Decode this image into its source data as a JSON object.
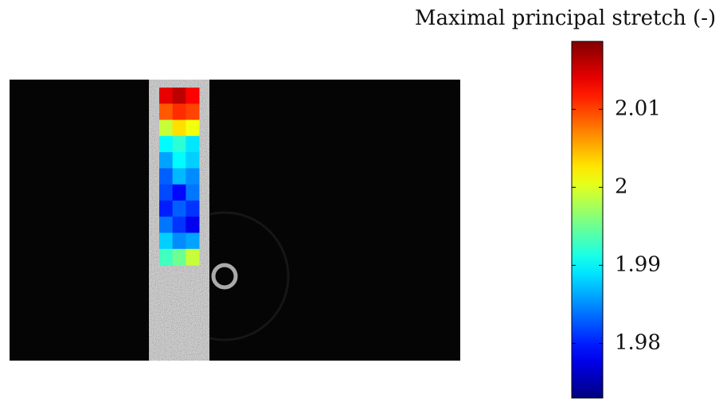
{
  "chart_data": {
    "type": "heatmap",
    "title": "Maximal principal stretch (-)",
    "colormap": "jet",
    "clim": [
      1.973,
      2.0187
    ],
    "cticks": [
      2.01,
      2,
      1.99,
      1.98
    ],
    "values": [
      [
        2.014,
        2.016,
        2.013
      ],
      [
        2.009,
        2.011,
        2.01
      ],
      [
        1.999,
        2.003,
        2.001
      ],
      [
        1.99,
        1.992,
        1.989
      ],
      [
        1.986,
        1.99,
        1.988
      ],
      [
        1.983,
        1.987,
        1.985
      ],
      [
        1.982,
        1.979,
        1.984
      ],
      [
        1.98,
        1.983,
        1.981
      ],
      [
        1.984,
        1.981,
        1.978
      ],
      [
        1.988,
        1.985,
        1.986
      ],
      [
        1.993,
        1.995,
        1.999
      ]
    ]
  }
}
